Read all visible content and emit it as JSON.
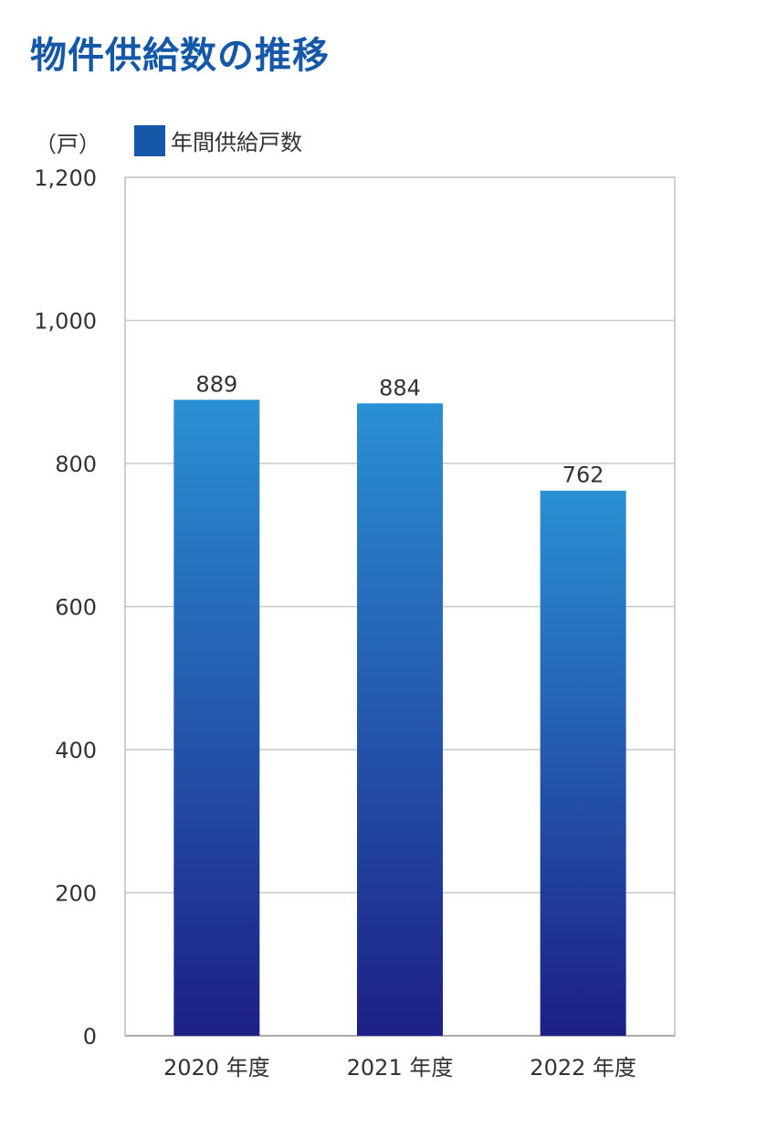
{
  "title": "物件供給数の推移",
  "unit_label": "（戸）",
  "legend_label": "年間供給戸数",
  "colors": {
    "title": "#1558a8",
    "legend_swatch": "#1558a8",
    "bar_top": "#2a90d4",
    "bar_bottom": "#1d1f86",
    "grid": "#c8c8c8",
    "text": "#333333"
  },
  "chart_data": {
    "type": "bar",
    "categories": [
      "2020 年度",
      "2021 年度",
      "2022 年度"
    ],
    "series": [
      {
        "name": "年間供給戸数",
        "values": [
          889,
          884,
          762
        ]
      }
    ],
    "data_labels": [
      "889",
      "884",
      "762"
    ],
    "yticks": [
      0,
      200,
      400,
      600,
      800,
      1000,
      1200
    ],
    "ytick_labels": [
      "0",
      "200",
      "400",
      "600",
      "800",
      "1,000",
      "1,200"
    ],
    "ylim": [
      0,
      1200
    ],
    "grid": true,
    "legend_position": "top-left"
  }
}
